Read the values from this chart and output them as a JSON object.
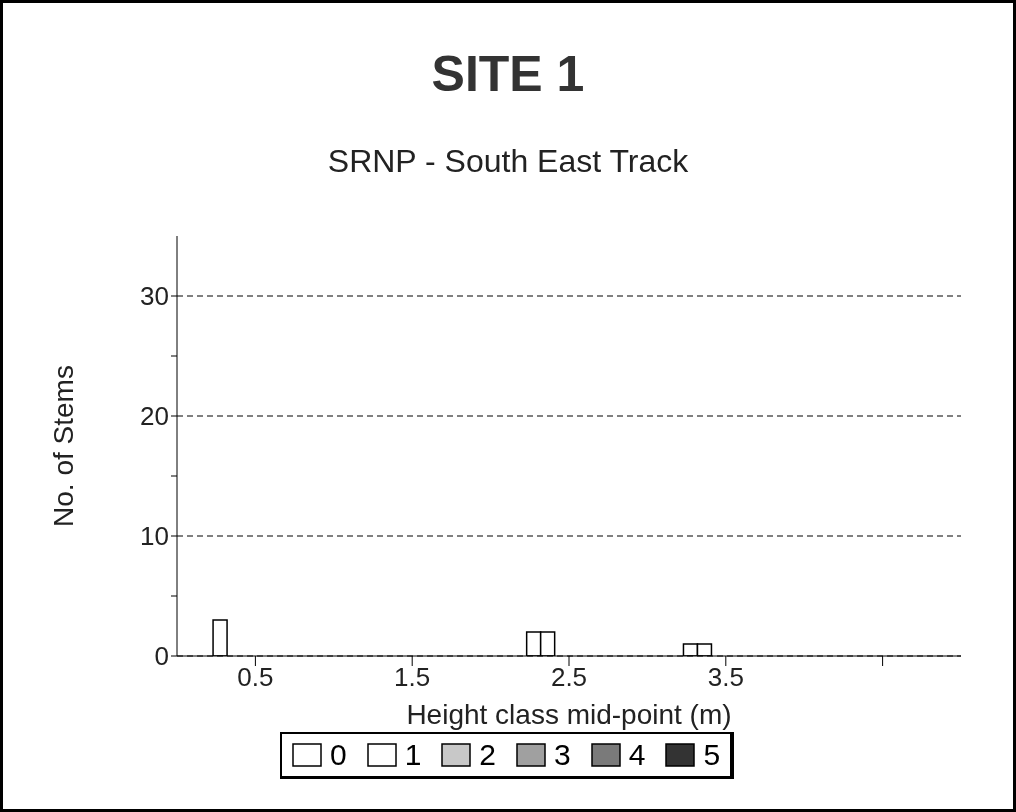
{
  "chart_data": {
    "type": "bar",
    "title": "SITE 1",
    "subtitle": "SRNP - South East Track",
    "xlabel": "Height class mid-point (m)",
    "ylabel": "No. of Stems",
    "categories": [
      "0.5",
      "1.5",
      "2.5",
      "3.5",
      null
    ],
    "series": [
      {
        "name": "0",
        "color": "#ffffff",
        "values": [
          3,
          0,
          2,
          1,
          0
        ]
      },
      {
        "name": "1",
        "color": "#ffffff",
        "values": [
          0,
          0,
          2,
          1,
          0
        ]
      },
      {
        "name": "2",
        "color": "#c8c8c8",
        "values": [
          0,
          0,
          0,
          0,
          0
        ]
      },
      {
        "name": "3",
        "color": "#a0a0a0",
        "values": [
          0,
          0,
          0,
          0,
          0
        ]
      },
      {
        "name": "4",
        "color": "#7a7a7a",
        "values": [
          0,
          0,
          0,
          0,
          0
        ]
      },
      {
        "name": "5",
        "color": "#333333",
        "values": [
          0,
          0,
          0,
          0,
          0
        ]
      }
    ],
    "ylim": [
      0,
      35
    ],
    "yticks": [
      0,
      {
        "value": 5,
        "label": null
      },
      10,
      {
        "value": 15,
        "label": null
      },
      20,
      {
        "value": 25,
        "label": null
      },
      30
    ],
    "grid": "y",
    "legend": "bottom"
  }
}
